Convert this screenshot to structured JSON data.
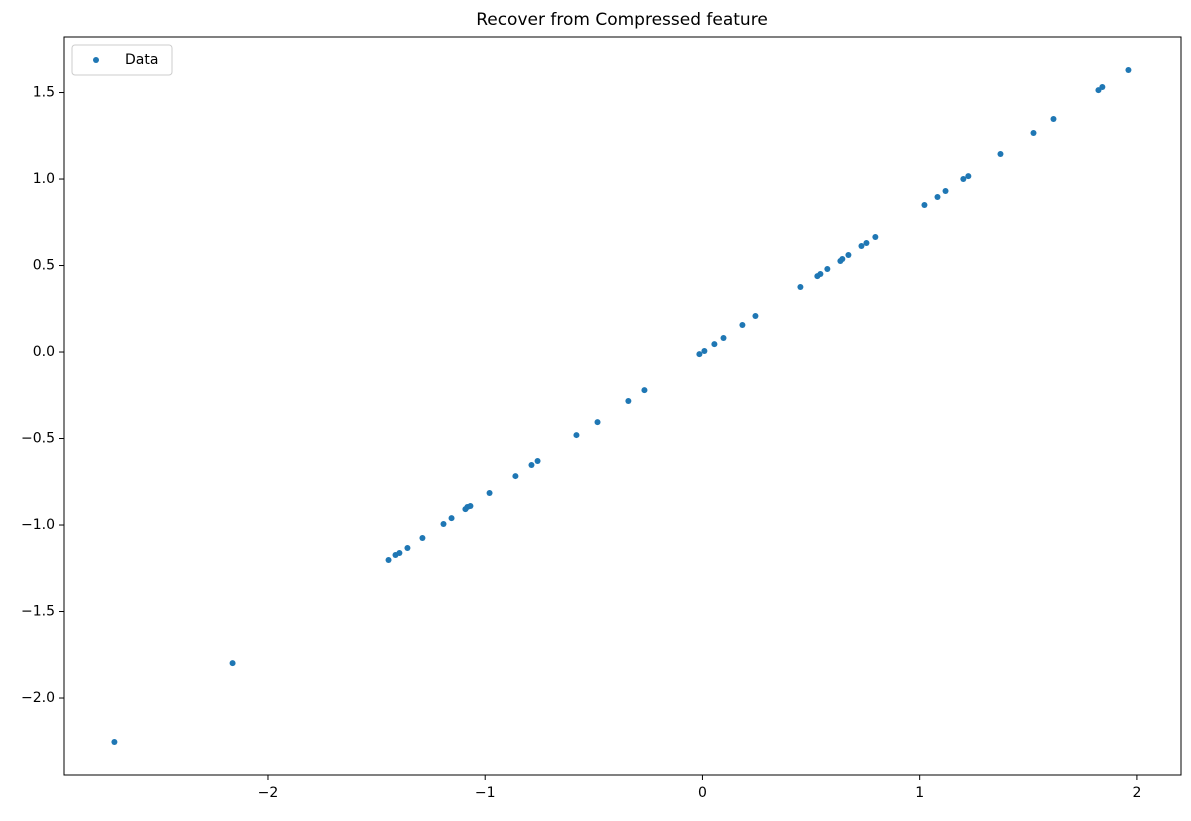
{
  "chart_data": {
    "type": "scatter",
    "title": "Recover from Compressed feature",
    "series": [
      {
        "name": "Data",
        "color": "#1f77b4",
        "x": [
          -2.707,
          -2.163,
          -1.445,
          -1.413,
          -1.395,
          -1.358,
          -1.289,
          -1.192,
          -1.155,
          -1.091,
          -1.082,
          -1.068,
          -0.98,
          -0.861,
          -0.787,
          -0.759,
          -0.58,
          -0.483,
          -0.341,
          -0.267,
          -0.014,
          0.009,
          0.055,
          0.097,
          0.184,
          0.244,
          0.451,
          0.529,
          0.543,
          0.575,
          0.635,
          0.644,
          0.672,
          0.732,
          0.755,
          0.796,
          1.022,
          1.082,
          1.119,
          1.201,
          1.224,
          1.372,
          1.524,
          1.616,
          1.823,
          1.841,
          1.961
        ],
        "values": [
          -2.254,
          -1.798,
          -1.202,
          -1.173,
          -1.162,
          -1.133,
          -1.075,
          -0.994,
          -0.96,
          -0.908,
          -0.896,
          -0.89,
          -0.815,
          -0.717,
          -0.653,
          -0.63,
          -0.48,
          -0.405,
          -0.283,
          -0.22,
          -0.012,
          0.006,
          0.046,
          0.081,
          0.156,
          0.208,
          0.376,
          0.439,
          0.451,
          0.48,
          0.526,
          0.538,
          0.561,
          0.613,
          0.63,
          0.665,
          0.85,
          0.896,
          0.931,
          1.0,
          1.017,
          1.145,
          1.266,
          1.347,
          1.514,
          1.532,
          1.63
        ]
      }
    ],
    "xlim": [
      -2.939,
      2.203
    ],
    "xticks": [
      {
        "value": -2,
        "label": "−2"
      },
      {
        "value": -1,
        "label": "−1"
      },
      0,
      1,
      2
    ],
    "ylim": [
      -2.445,
      1.821
    ],
    "yticks": [
      {
        "value": -2.0,
        "label": "−2.0"
      },
      {
        "value": -1.5,
        "label": "−1.5"
      },
      {
        "value": -1.0,
        "label": "−1.0"
      },
      {
        "value": -0.5,
        "label": "−0.5"
      },
      {
        "value": 0.0,
        "label": "0.0"
      },
      0.5,
      {
        "value": 1.0,
        "label": "1.0"
      },
      1.5
    ],
    "legend": "upper left"
  }
}
